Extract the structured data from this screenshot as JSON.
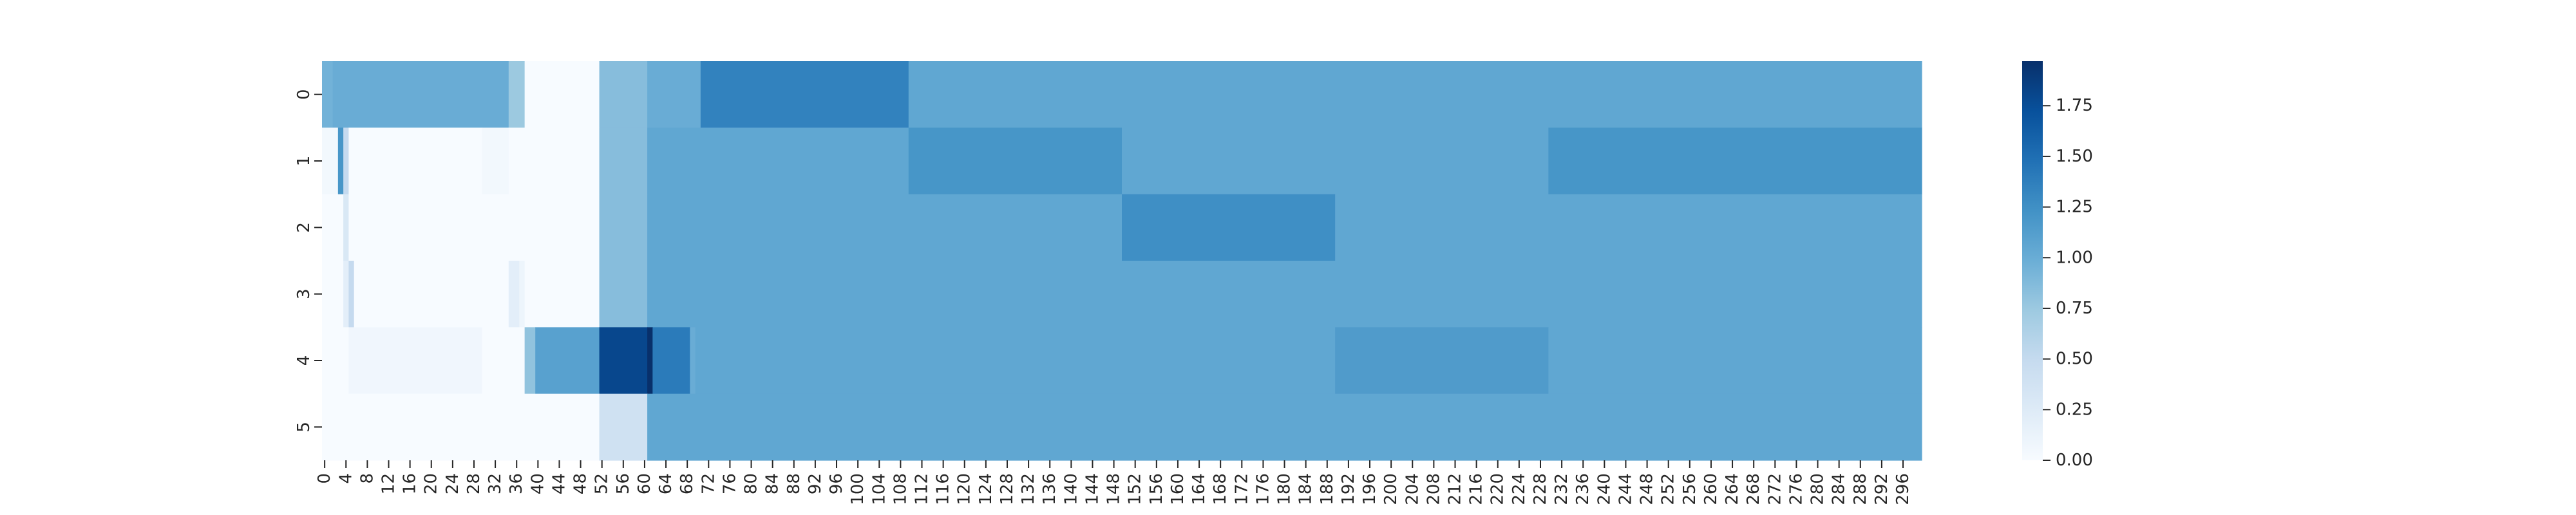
{
  "chart_data": {
    "type": "heatmap",
    "colormap": "Blues",
    "color_range": [
      0,
      1.97
    ],
    "x_count": 300,
    "x_tick_step": 4,
    "x_tick_labels": [
      "0",
      "4",
      "8",
      "12",
      "16",
      "20",
      "24",
      "28",
      "32",
      "36",
      "40",
      "44",
      "48",
      "52",
      "56",
      "60",
      "64",
      "68",
      "72",
      "76",
      "80",
      "84",
      "88",
      "92",
      "96",
      "100",
      "104",
      "108",
      "112",
      "116",
      "120",
      "124",
      "128",
      "132",
      "136",
      "140",
      "144",
      "148",
      "152",
      "156",
      "160",
      "164",
      "168",
      "172",
      "176",
      "180",
      "184",
      "188",
      "192",
      "196",
      "200",
      "204",
      "208",
      "212",
      "216",
      "220",
      "224",
      "228",
      "232",
      "236",
      "240",
      "244",
      "248",
      "252",
      "256",
      "260",
      "264",
      "268",
      "272",
      "276",
      "280",
      "284",
      "288",
      "292",
      "296"
    ],
    "y_tick_labels": [
      "0",
      "1",
      "2",
      "3",
      "4",
      "5"
    ],
    "colorbar_ticks": [
      "0.00",
      "0.25",
      "0.50",
      "0.75",
      "1.00",
      "1.25",
      "1.50",
      "1.75"
    ],
    "colorbar_tick_values": [
      0,
      0.25,
      0.5,
      0.75,
      1.0,
      1.25,
      1.5,
      1.75
    ],
    "rows": [
      [
        [
          0,
          2,
          0.95
        ],
        [
          2,
          35,
          1.0
        ],
        [
          35,
          38,
          0.75
        ],
        [
          38,
          52,
          0.0
        ],
        [
          52,
          61,
          0.85
        ],
        [
          61,
          71,
          1.0
        ],
        [
          71,
          110,
          1.35
        ],
        [
          110,
          300,
          1.05
        ]
      ],
      [
        [
          0,
          3,
          0.05
        ],
        [
          3,
          4,
          1.2
        ],
        [
          4,
          5,
          0.5
        ],
        [
          5,
          30,
          0.0
        ],
        [
          30,
          35,
          0.05
        ],
        [
          35,
          52,
          0.0
        ],
        [
          52,
          61,
          0.85
        ],
        [
          61,
          110,
          1.05
        ],
        [
          110,
          150,
          1.2
        ],
        [
          150,
          230,
          1.05
        ],
        [
          230,
          300,
          1.2
        ]
      ],
      [
        [
          0,
          4,
          0.0
        ],
        [
          4,
          5,
          0.3
        ],
        [
          5,
          52,
          0.0
        ],
        [
          52,
          61,
          0.85
        ],
        [
          61,
          150,
          1.05
        ],
        [
          150,
          190,
          1.25
        ],
        [
          190,
          300,
          1.05
        ]
      ],
      [
        [
          0,
          4,
          0.0
        ],
        [
          4,
          5,
          0.2
        ],
        [
          5,
          6,
          0.5
        ],
        [
          6,
          35,
          0.0
        ],
        [
          35,
          37,
          0.2
        ],
        [
          37,
          38,
          0.1
        ],
        [
          38,
          52,
          0.0
        ],
        [
          52,
          61,
          0.85
        ],
        [
          61,
          300,
          1.05
        ]
      ],
      [
        [
          0,
          5,
          0.0
        ],
        [
          5,
          30,
          0.07
        ],
        [
          30,
          38,
          0.0
        ],
        [
          38,
          40,
          0.8
        ],
        [
          40,
          52,
          1.1
        ],
        [
          52,
          61,
          1.8
        ],
        [
          61,
          62,
          1.97
        ],
        [
          62,
          69,
          1.4
        ],
        [
          69,
          70,
          1.0
        ],
        [
          70,
          190,
          1.05
        ],
        [
          190,
          230,
          1.15
        ],
        [
          230,
          300,
          1.05
        ]
      ],
      [
        [
          0,
          52,
          0.0
        ],
        [
          52,
          61,
          0.4
        ],
        [
          61,
          300,
          1.05
        ]
      ]
    ]
  }
}
